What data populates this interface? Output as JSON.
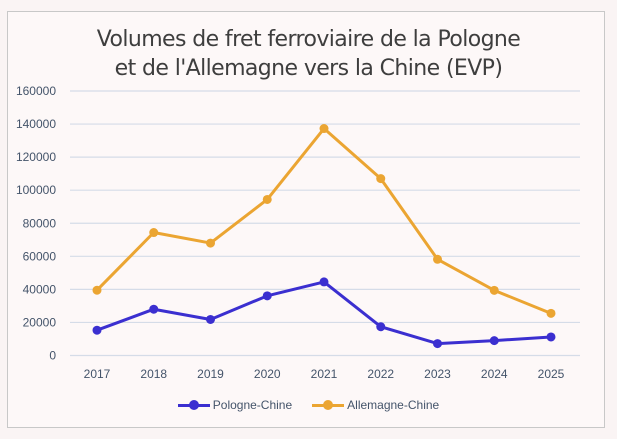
{
  "chart_data": {
    "type": "line",
    "title": "Volumes de fret ferroviaire de la Pologne et de l'Allemagne vers la Chine (EVP)",
    "title_lines": [
      "Volumes de fret ferroviaire de la Pologne",
      "et de l'Allemagne vers la Chine (EVP)"
    ],
    "xlabel": "",
    "ylabel": "",
    "x": [
      "2017",
      "2018",
      "2019",
      "2020",
      "2021",
      "2022",
      "2023",
      "2024",
      "2025"
    ],
    "ylim": [
      0,
      160000
    ],
    "yticks": [
      "0",
      "20000",
      "40000",
      "60000",
      "80000",
      "100000",
      "120000",
      "140000",
      "160000"
    ],
    "grid": true,
    "legend_position": "bottom",
    "series": [
      {
        "name": "Pologne-Chine",
        "color": "#3b2fd0",
        "values": [
          15300,
          28000,
          21800,
          36100,
          44500,
          17400,
          7200,
          9000,
          11200
        ]
      },
      {
        "name": "Allemagne-Chine",
        "color": "#eba532",
        "values": [
          39500,
          74400,
          68000,
          94400,
          137300,
          107000,
          58200,
          39400,
          25500
        ]
      }
    ]
  }
}
